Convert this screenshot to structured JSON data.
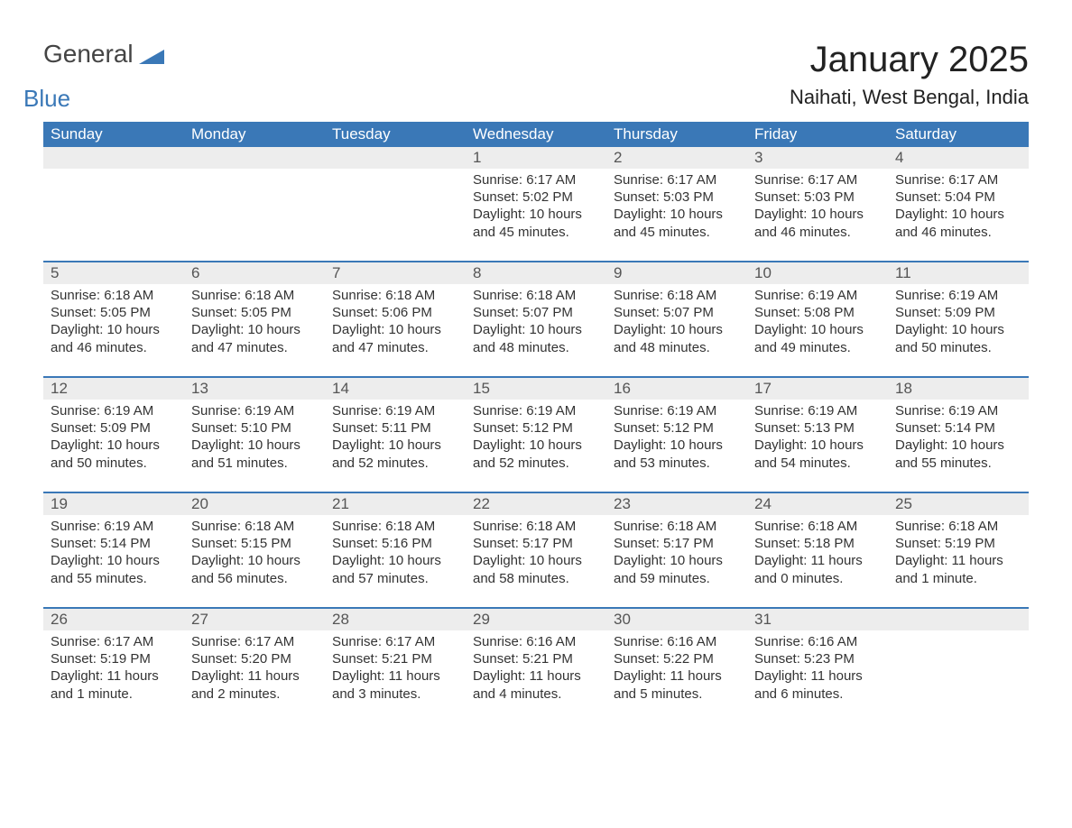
{
  "brand": {
    "word1": "General",
    "word2": "Blue"
  },
  "title": "January 2025",
  "location": "Naihati, West Bengal, India",
  "colors": {
    "header_bg": "#3a78b7",
    "header_text": "#ffffff",
    "daynum_bg": "#ededed",
    "daynum_text": "#555555",
    "body_text": "#333333",
    "page_bg": "#ffffff",
    "row_divider": "#3a78b7",
    "title_text": "#222222",
    "brand_blue": "#3a78b7",
    "brand_gray": "#444444"
  },
  "typography": {
    "title_fontsize": 40,
    "location_fontsize": 22,
    "dow_fontsize": 17,
    "daynum_fontsize": 17,
    "body_fontsize": 15,
    "font_family": "Arial"
  },
  "layout": {
    "columns": 7,
    "body_row_min_height": 102
  },
  "days_of_week": [
    "Sunday",
    "Monday",
    "Tuesday",
    "Wednesday",
    "Thursday",
    "Friday",
    "Saturday"
  ],
  "weeks": [
    [
      {
        "num": "",
        "sunrise": "",
        "sunset": "",
        "daylight": ""
      },
      {
        "num": "",
        "sunrise": "",
        "sunset": "",
        "daylight": ""
      },
      {
        "num": "",
        "sunrise": "",
        "sunset": "",
        "daylight": ""
      },
      {
        "num": "1",
        "sunrise": "Sunrise: 6:17 AM",
        "sunset": "Sunset: 5:02 PM",
        "daylight": "Daylight: 10 hours and 45 minutes."
      },
      {
        "num": "2",
        "sunrise": "Sunrise: 6:17 AM",
        "sunset": "Sunset: 5:03 PM",
        "daylight": "Daylight: 10 hours and 45 minutes."
      },
      {
        "num": "3",
        "sunrise": "Sunrise: 6:17 AM",
        "sunset": "Sunset: 5:03 PM",
        "daylight": "Daylight: 10 hours and 46 minutes."
      },
      {
        "num": "4",
        "sunrise": "Sunrise: 6:17 AM",
        "sunset": "Sunset: 5:04 PM",
        "daylight": "Daylight: 10 hours and 46 minutes."
      }
    ],
    [
      {
        "num": "5",
        "sunrise": "Sunrise: 6:18 AM",
        "sunset": "Sunset: 5:05 PM",
        "daylight": "Daylight: 10 hours and 46 minutes."
      },
      {
        "num": "6",
        "sunrise": "Sunrise: 6:18 AM",
        "sunset": "Sunset: 5:05 PM",
        "daylight": "Daylight: 10 hours and 47 minutes."
      },
      {
        "num": "7",
        "sunrise": "Sunrise: 6:18 AM",
        "sunset": "Sunset: 5:06 PM",
        "daylight": "Daylight: 10 hours and 47 minutes."
      },
      {
        "num": "8",
        "sunrise": "Sunrise: 6:18 AM",
        "sunset": "Sunset: 5:07 PM",
        "daylight": "Daylight: 10 hours and 48 minutes."
      },
      {
        "num": "9",
        "sunrise": "Sunrise: 6:18 AM",
        "sunset": "Sunset: 5:07 PM",
        "daylight": "Daylight: 10 hours and 48 minutes."
      },
      {
        "num": "10",
        "sunrise": "Sunrise: 6:19 AM",
        "sunset": "Sunset: 5:08 PM",
        "daylight": "Daylight: 10 hours and 49 minutes."
      },
      {
        "num": "11",
        "sunrise": "Sunrise: 6:19 AM",
        "sunset": "Sunset: 5:09 PM",
        "daylight": "Daylight: 10 hours and 50 minutes."
      }
    ],
    [
      {
        "num": "12",
        "sunrise": "Sunrise: 6:19 AM",
        "sunset": "Sunset: 5:09 PM",
        "daylight": "Daylight: 10 hours and 50 minutes."
      },
      {
        "num": "13",
        "sunrise": "Sunrise: 6:19 AM",
        "sunset": "Sunset: 5:10 PM",
        "daylight": "Daylight: 10 hours and 51 minutes."
      },
      {
        "num": "14",
        "sunrise": "Sunrise: 6:19 AM",
        "sunset": "Sunset: 5:11 PM",
        "daylight": "Daylight: 10 hours and 52 minutes."
      },
      {
        "num": "15",
        "sunrise": "Sunrise: 6:19 AM",
        "sunset": "Sunset: 5:12 PM",
        "daylight": "Daylight: 10 hours and 52 minutes."
      },
      {
        "num": "16",
        "sunrise": "Sunrise: 6:19 AM",
        "sunset": "Sunset: 5:12 PM",
        "daylight": "Daylight: 10 hours and 53 minutes."
      },
      {
        "num": "17",
        "sunrise": "Sunrise: 6:19 AM",
        "sunset": "Sunset: 5:13 PM",
        "daylight": "Daylight: 10 hours and 54 minutes."
      },
      {
        "num": "18",
        "sunrise": "Sunrise: 6:19 AM",
        "sunset": "Sunset: 5:14 PM",
        "daylight": "Daylight: 10 hours and 55 minutes."
      }
    ],
    [
      {
        "num": "19",
        "sunrise": "Sunrise: 6:19 AM",
        "sunset": "Sunset: 5:14 PM",
        "daylight": "Daylight: 10 hours and 55 minutes."
      },
      {
        "num": "20",
        "sunrise": "Sunrise: 6:18 AM",
        "sunset": "Sunset: 5:15 PM",
        "daylight": "Daylight: 10 hours and 56 minutes."
      },
      {
        "num": "21",
        "sunrise": "Sunrise: 6:18 AM",
        "sunset": "Sunset: 5:16 PM",
        "daylight": "Daylight: 10 hours and 57 minutes."
      },
      {
        "num": "22",
        "sunrise": "Sunrise: 6:18 AM",
        "sunset": "Sunset: 5:17 PM",
        "daylight": "Daylight: 10 hours and 58 minutes."
      },
      {
        "num": "23",
        "sunrise": "Sunrise: 6:18 AM",
        "sunset": "Sunset: 5:17 PM",
        "daylight": "Daylight: 10 hours and 59 minutes."
      },
      {
        "num": "24",
        "sunrise": "Sunrise: 6:18 AM",
        "sunset": "Sunset: 5:18 PM",
        "daylight": "Daylight: 11 hours and 0 minutes."
      },
      {
        "num": "25",
        "sunrise": "Sunrise: 6:18 AM",
        "sunset": "Sunset: 5:19 PM",
        "daylight": "Daylight: 11 hours and 1 minute."
      }
    ],
    [
      {
        "num": "26",
        "sunrise": "Sunrise: 6:17 AM",
        "sunset": "Sunset: 5:19 PM",
        "daylight": "Daylight: 11 hours and 1 minute."
      },
      {
        "num": "27",
        "sunrise": "Sunrise: 6:17 AM",
        "sunset": "Sunset: 5:20 PM",
        "daylight": "Daylight: 11 hours and 2 minutes."
      },
      {
        "num": "28",
        "sunrise": "Sunrise: 6:17 AM",
        "sunset": "Sunset: 5:21 PM",
        "daylight": "Daylight: 11 hours and 3 minutes."
      },
      {
        "num": "29",
        "sunrise": "Sunrise: 6:16 AM",
        "sunset": "Sunset: 5:21 PM",
        "daylight": "Daylight: 11 hours and 4 minutes."
      },
      {
        "num": "30",
        "sunrise": "Sunrise: 6:16 AM",
        "sunset": "Sunset: 5:22 PM",
        "daylight": "Daylight: 11 hours and 5 minutes."
      },
      {
        "num": "31",
        "sunrise": "Sunrise: 6:16 AM",
        "sunset": "Sunset: 5:23 PM",
        "daylight": "Daylight: 11 hours and 6 minutes."
      },
      {
        "num": "",
        "sunrise": "",
        "sunset": "",
        "daylight": ""
      }
    ]
  ]
}
